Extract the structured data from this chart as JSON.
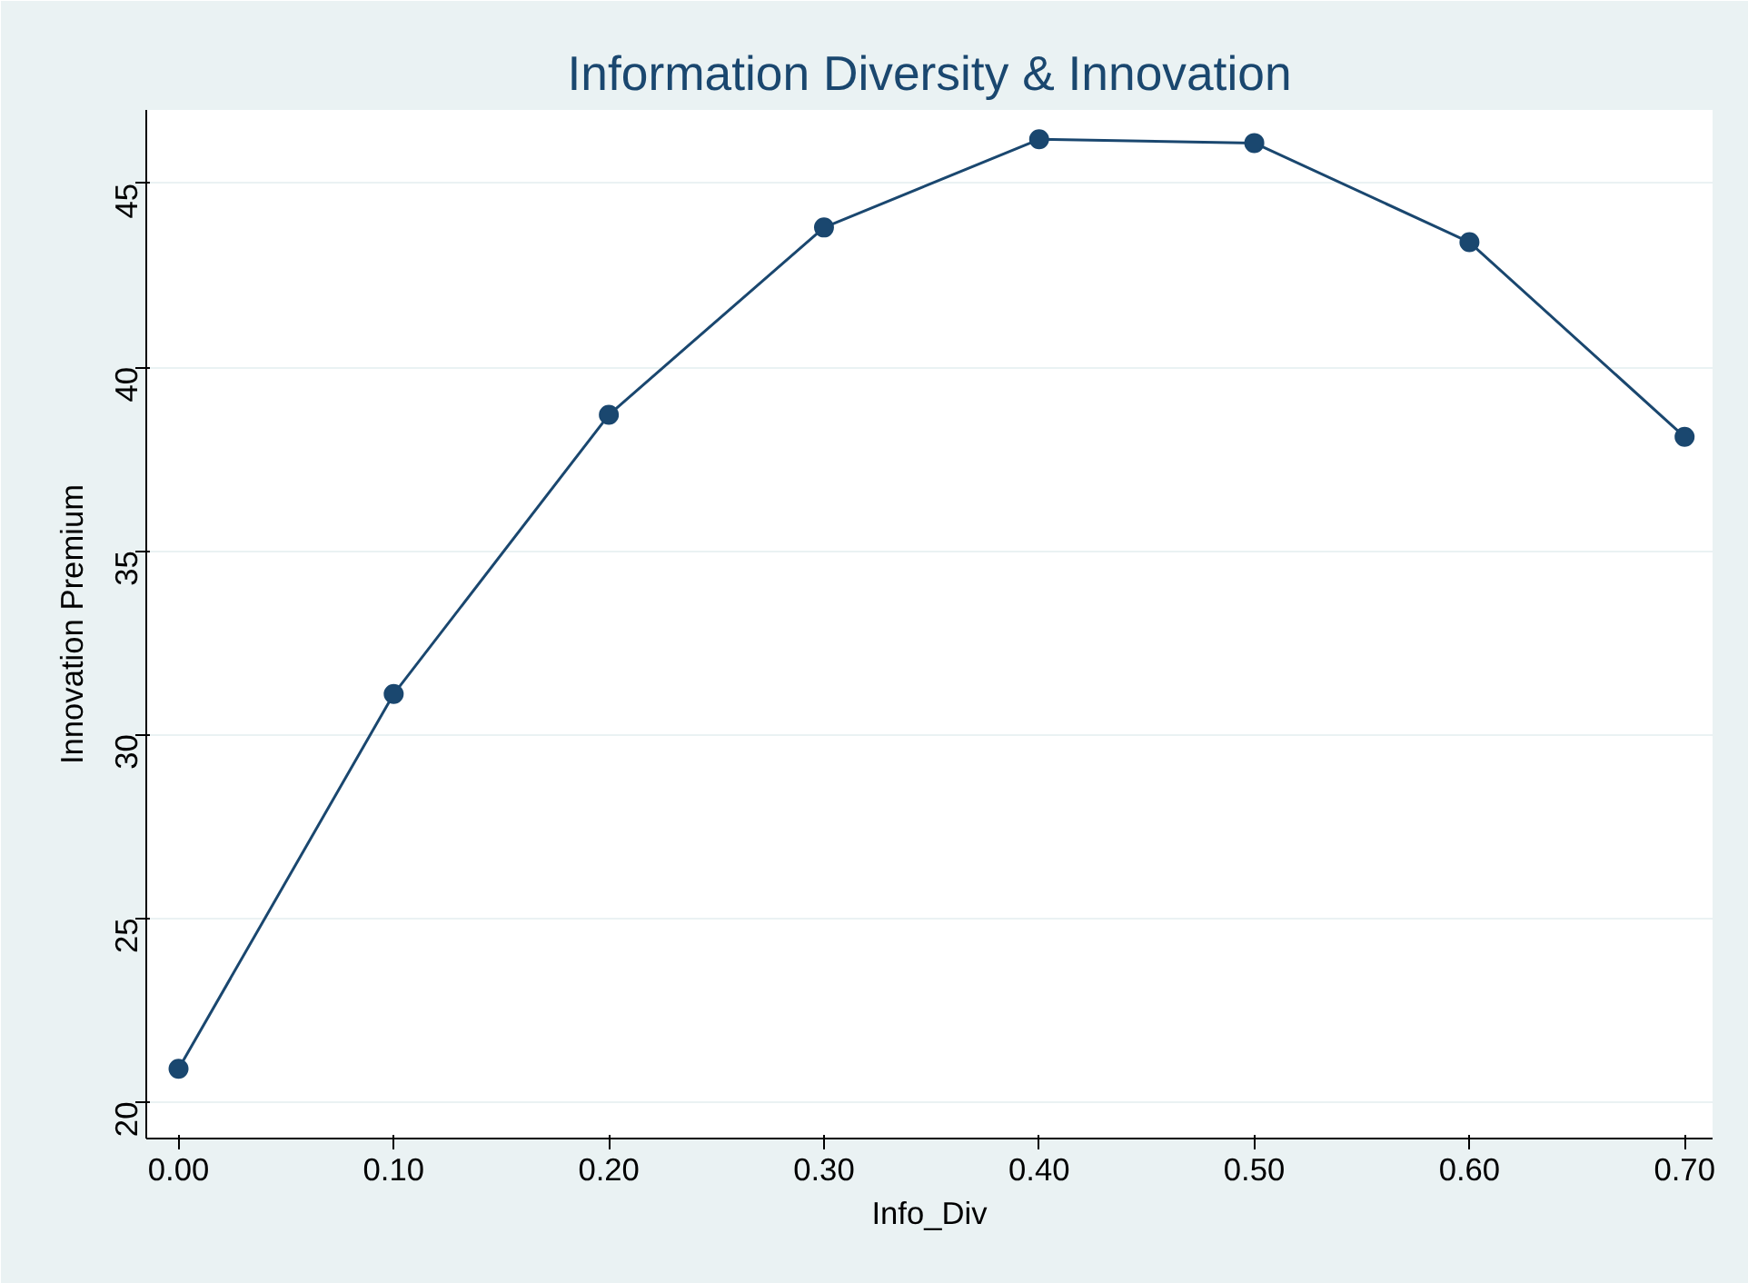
{
  "chart_data": {
    "type": "line",
    "title": "Information Diversity & Innovation",
    "xlabel": "Info_Div",
    "ylabel": "Innovation Premium",
    "x": [
      0,
      0.1,
      0.2,
      0.3,
      0.4,
      0.5,
      0.6,
      0.7
    ],
    "series": [
      {
        "color": "#1a476f",
        "values": [
          20.9,
          31.1,
          38.7,
          43.8,
          46.2,
          46.1,
          43.4,
          38.1
        ]
      }
    ],
    "xlim": [
      -0.015,
      0.713
    ],
    "xticks": [
      {
        "value": 0,
        "label": "0.00"
      },
      {
        "value": 0.1,
        "label": "0.10"
      },
      {
        "value": 0.2,
        "label": "0.20"
      },
      {
        "value": 0.3,
        "label": "0.30"
      },
      {
        "value": 0.4,
        "label": "0.40"
      },
      {
        "value": 0.5,
        "label": "0.50"
      },
      {
        "value": 0.6,
        "label": "0.60"
      },
      {
        "value": 0.7,
        "label": "0.70"
      }
    ],
    "ylim": [
      19,
      47
    ],
    "yticks": [
      20,
      25,
      30,
      35,
      40,
      45
    ],
    "grid": "y",
    "marker": "circle",
    "line_style": "solid"
  }
}
